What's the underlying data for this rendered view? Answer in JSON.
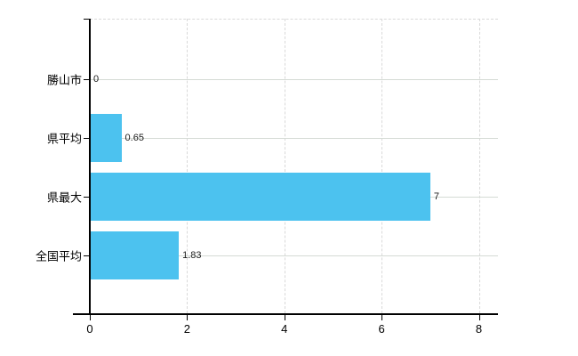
{
  "chart": {
    "bar_color": "#4cc2ef",
    "axis_color": "#000000",
    "hgrid_color": "#d5dbd5",
    "vgrid_color": "#d9d9d9",
    "label_color": "#000000",
    "value_label_color": "#1c1c1c",
    "background_color": "#ffffff"
  },
  "chart_data": {
    "type": "bar",
    "orientation": "horizontal",
    "categories": [
      "勝山市",
      "県平均",
      "県最大",
      "全国平均"
    ],
    "values": [
      0,
      0.65,
      7,
      1.83
    ],
    "value_labels": [
      "0",
      "0.65",
      "7",
      "1.83"
    ],
    "x_tick_labels": [
      "0",
      "2",
      "4",
      "6",
      "8"
    ],
    "x_tick_values": [
      0,
      2,
      4,
      6,
      8
    ],
    "xlim": [
      0,
      8.4
    ],
    "grid": true,
    "legend_position": "none"
  }
}
